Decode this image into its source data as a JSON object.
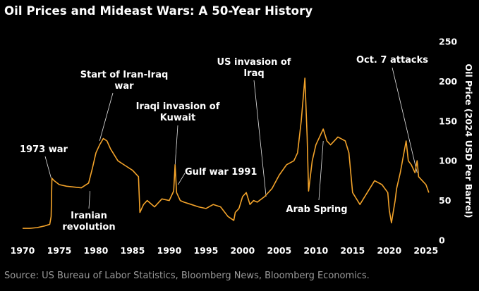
{
  "title": "Oil Prices and Mideast Wars: A 50-Year History",
  "source": "Source: US Bureau of Labor Statistics, Bloomberg News, Bloomberg Economics.",
  "colors": {
    "background": "#000000",
    "line": "#f3a32a",
    "text": "#ffffff",
    "source": "#9a9a9a"
  },
  "chart_data": {
    "type": "line",
    "title": "Oil Prices and Mideast Wars: A 50-Year History",
    "xlabel": "",
    "ylabel": "Oil Price (2024 USD Per Barrel)",
    "xlim": [
      1970,
      2025.6
    ],
    "ylim": [
      0,
      250
    ],
    "xticks": [
      "1970",
      "1975",
      "1980",
      "1985",
      "1990",
      "1995",
      "2000",
      "2005",
      "2010",
      "2015",
      "2020",
      "2025"
    ],
    "yticks": [
      "0",
      "50",
      "100",
      "150",
      "200",
      "250"
    ],
    "y_axis_side": "right",
    "grid": false,
    "legend": "none",
    "series": [
      {
        "x": [
          1970,
          1971,
          1972,
          1973,
          1973.7,
          1973.9,
          1974,
          1974.3,
          1975,
          1976,
          1977,
          1978,
          1979,
          1979.5,
          1980,
          1980.5,
          1981,
          1981.5,
          1982,
          1983,
          1984,
          1985,
          1985.8,
          1986,
          1986.5,
          1987,
          1988,
          1989,
          1990,
          1990.6,
          1990.8,
          1991,
          1991.5,
          1992,
          1993,
          1994,
          1995,
          1996,
          1997,
          1998,
          1998.8,
          1999,
          1999.5,
          2000,
          2000.5,
          2001,
          2001.5,
          2002,
          2003,
          2004,
          2005,
          2006,
          2007,
          2007.5,
          2008,
          2008.5,
          2008.8,
          2009,
          2009.5,
          2010,
          2011,
          2011.5,
          2012,
          2013,
          2014,
          2014.5,
          2015,
          2016,
          2017,
          2018,
          2019,
          2019.8,
          2020,
          2020.3,
          2020.8,
          2021,
          2021.5,
          2022,
          2022.3,
          2022.6,
          2023,
          2023.5,
          2023.8,
          2024,
          2024.5,
          2025,
          2025.4
        ],
        "y": [
          15,
          15,
          16,
          18,
          20,
          30,
          78,
          75,
          70,
          68,
          67,
          66,
          72,
          90,
          110,
          120,
          128,
          125,
          115,
          100,
          94,
          88,
          80,
          35,
          45,
          50,
          42,
          52,
          50,
          62,
          95,
          60,
          50,
          48,
          45,
          42,
          40,
          45,
          42,
          30,
          25,
          35,
          40,
          55,
          60,
          45,
          50,
          48,
          55,
          65,
          82,
          95,
          100,
          110,
          150,
          204,
          130,
          62,
          100,
          120,
          140,
          125,
          120,
          130,
          125,
          110,
          60,
          45,
          60,
          75,
          70,
          60,
          38,
          22,
          50,
          65,
          85,
          110,
          125,
          100,
          95,
          85,
          100,
          80,
          75,
          70,
          60
        ]
      }
    ],
    "annotations": [
      {
        "label_lines": [
          "1973 war"
        ],
        "x": 1973.9,
        "y": 78
      },
      {
        "label_lines": [
          "Iranian",
          "revolution"
        ],
        "x": 1979.2,
        "y": 62
      },
      {
        "label_lines": [
          "Start of Iran-Iraq",
          "war"
        ],
        "x": 1980.5,
        "y": 125
      },
      {
        "label_lines": [
          "Iraqi invasion of",
          "Kuwait"
        ],
        "x": 1990.8,
        "y": 95
      },
      {
        "label_lines": [
          "Gulf war 1991"
        ],
        "x": 1991.2,
        "y": 70
      },
      {
        "label_lines": [
          "US invasion of",
          "Iraq"
        ],
        "x": 2003.2,
        "y": 55
      },
      {
        "label_lines": [
          "Arab Spring"
        ],
        "x": 2011.0,
        "y": 125
      },
      {
        "label_lines": [
          "Oct. 7 attacks"
        ],
        "x": 2023.8,
        "y": 85
      }
    ]
  }
}
